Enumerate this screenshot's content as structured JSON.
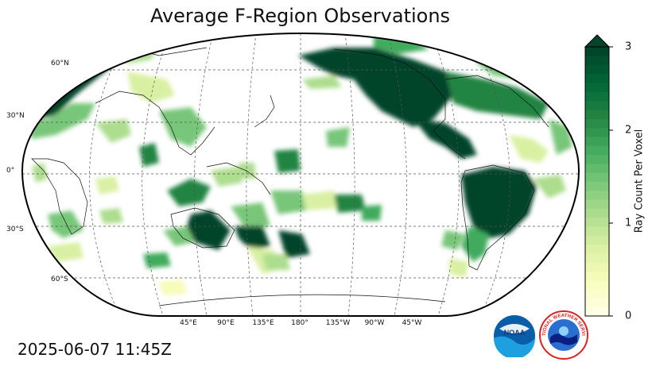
{
  "title": "Average F-Region Observations",
  "timestamp": "2025-06-07 11:45Z",
  "map": {
    "projection": "robinson",
    "central_longitude": "180°",
    "lat_labels": [
      "60°N",
      "30°N",
      "0°",
      "30°S",
      "60°S"
    ],
    "lon_labels": [
      "45°E",
      "90°E",
      "135°E",
      "180°",
      "135°W",
      "90°W",
      "45°W"
    ],
    "gridlines": true,
    "coastlines": true,
    "country_borders": true
  },
  "colorbar": {
    "label": "Ray Count Per Voxel",
    "ticks": [
      "0",
      "1",
      "2",
      "3"
    ],
    "min": 0,
    "max": 3,
    "extend": "max",
    "colormap": "YlGn",
    "colors": [
      "#ffffe5",
      "#f7fcb9",
      "#d9f0a3",
      "#addd8e",
      "#78c679",
      "#41ab5d",
      "#238443",
      "#006837",
      "#004529"
    ]
  },
  "logos": {
    "noaa": "NOAA",
    "nws": "NATIONAL WEATHER SERVICE"
  }
}
